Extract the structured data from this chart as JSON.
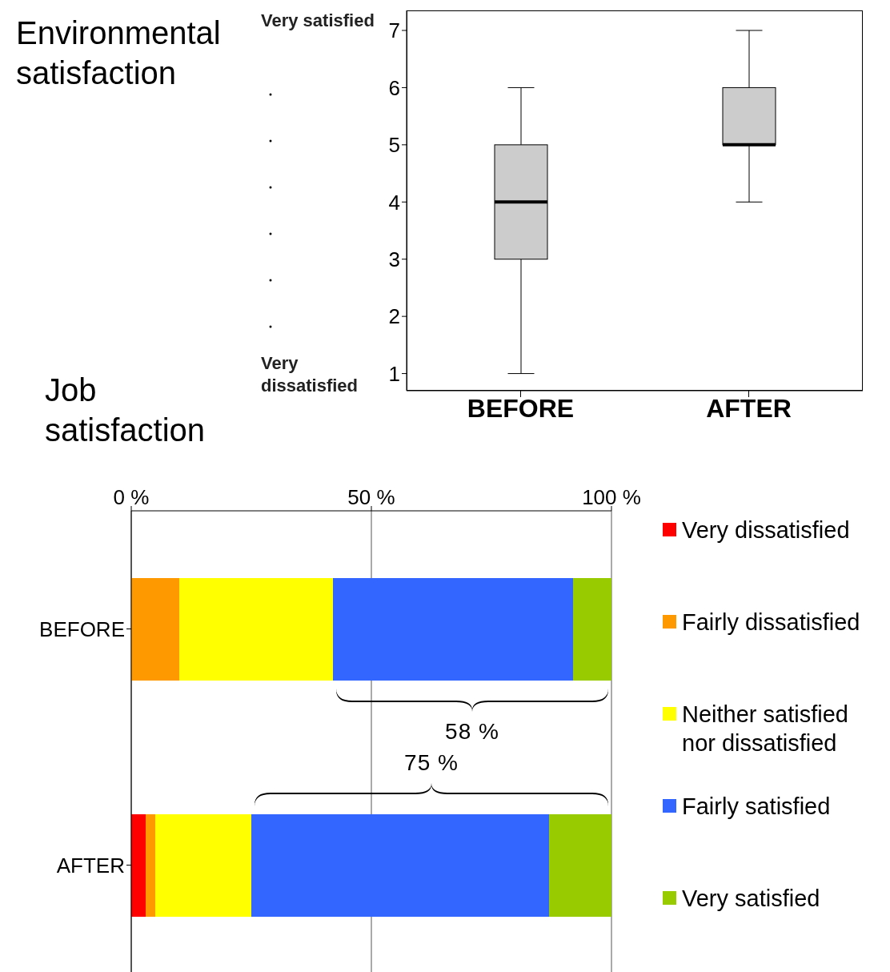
{
  "chart_data": [
    {
      "type": "box",
      "title": "Environmental satisfaction",
      "categories": [
        "BEFORE",
        "AFTER"
      ],
      "color": "#cccccc",
      "boxes": [
        {
          "low": 1,
          "q1": 3,
          "median": 4,
          "q3": 5,
          "high": 6
        },
        {
          "low": 4,
          "q1": 5,
          "median": 5,
          "q3": 6,
          "high": 7
        }
      ],
      "ylim": [
        0.7,
        7.35
      ],
      "yticks": [
        1,
        2,
        3,
        4,
        5,
        6,
        7
      ],
      "annotations": [
        "Very satisfied",
        "Very dissatisfied"
      ]
    },
    {
      "type": "bar",
      "orientation": "horizontal",
      "stacked": true,
      "title": "Job satisfaction",
      "categories": [
        "BEFORE",
        "AFTER"
      ],
      "series": [
        {
          "name": "Very dissatisfied",
          "color": "#ff0000",
          "values": [
            0,
            3
          ]
        },
        {
          "name": "Fairly dissatisfied",
          "color": "#ff9900",
          "values": [
            10,
            2
          ]
        },
        {
          "name": "Neither satisfied nor dissatisfied",
          "color": "#ffff00",
          "values": [
            32,
            20
          ]
        },
        {
          "name": "Fairly satisfied",
          "color": "#3366ff",
          "values": [
            50,
            62
          ]
        },
        {
          "name": "Very satisfied",
          "color": "#99cc00",
          "values": [
            8,
            13
          ]
        }
      ],
      "xlim": [
        0,
        100
      ],
      "xticks": [
        {
          "value": 0,
          "label": "0 %"
        },
        {
          "value": 50,
          "label": "50 %"
        },
        {
          "value": 100,
          "label": "100 %"
        }
      ],
      "grid": "x",
      "legend": "right",
      "annotations": [
        "58 %",
        "75 %"
      ]
    }
  ]
}
